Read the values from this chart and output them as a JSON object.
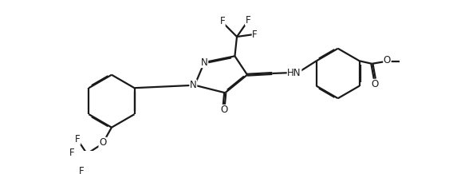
{
  "bg_color": "#ffffff",
  "line_color": "#1a1a1a",
  "line_width": 1.6,
  "dbo": 0.012,
  "font_size": 8.5,
  "fig_width": 5.68,
  "fig_height": 2.18,
  "dpi": 100,
  "xlim": [
    0,
    5.68
  ],
  "ylim": [
    0,
    2.18
  ]
}
